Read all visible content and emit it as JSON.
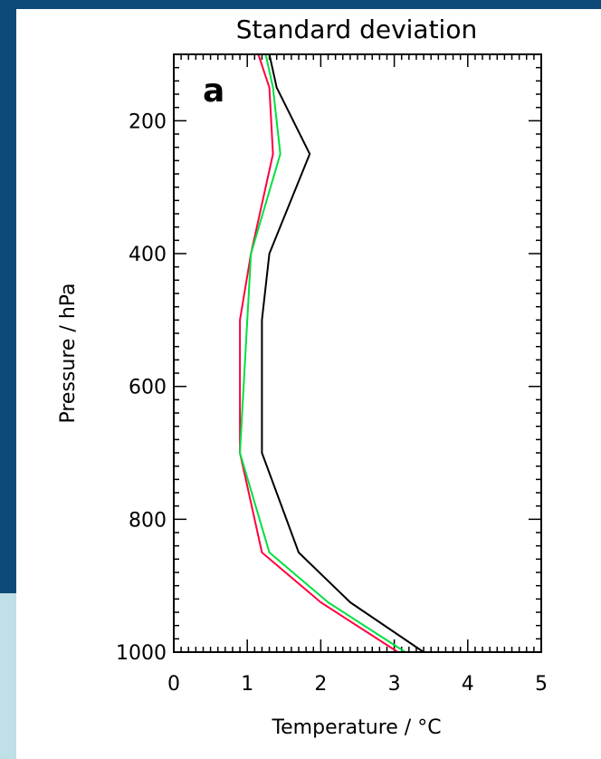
{
  "chart_data": {
    "type": "line",
    "title": "Standard deviation",
    "panel_label": "a",
    "xlabel": "Temperature / °C",
    "ylabel": "Pressure / hPa",
    "xlim": [
      0,
      5
    ],
    "ylim": [
      100,
      1000
    ],
    "y_inverted": true,
    "x_ticks": [
      0,
      1,
      2,
      3,
      4,
      5
    ],
    "x_tick_labels": [
      "0",
      "1",
      "2",
      "3",
      "4",
      "5"
    ],
    "y_ticks": [
      200,
      400,
      600,
      800,
      1000
    ],
    "y_tick_labels": [
      "200",
      "400",
      "600",
      "800",
      "1000"
    ],
    "grid": false,
    "series": [
      {
        "color": "#000000",
        "x": [
          3.4,
          2.4,
          1.7,
          1.2,
          1.2,
          1.3,
          1.85,
          1.4,
          1.3
        ],
        "y": [
          1000,
          925,
          850,
          700,
          500,
          400,
          250,
          150,
          100
        ]
      },
      {
        "color": "#ff0040",
        "x": [
          3.05,
          2.0,
          1.2,
          0.9,
          0.9,
          1.05,
          1.35,
          1.3,
          1.15
        ],
        "y": [
          1000,
          925,
          850,
          700,
          500,
          400,
          250,
          150,
          100
        ]
      },
      {
        "color": "#00e040",
        "x": [
          3.15,
          2.1,
          1.3,
          0.9,
          1.0,
          1.05,
          1.45,
          1.35,
          1.25
        ],
        "y": [
          1000,
          925,
          850,
          700,
          500,
          400,
          250,
          150,
          100
        ]
      }
    ]
  }
}
